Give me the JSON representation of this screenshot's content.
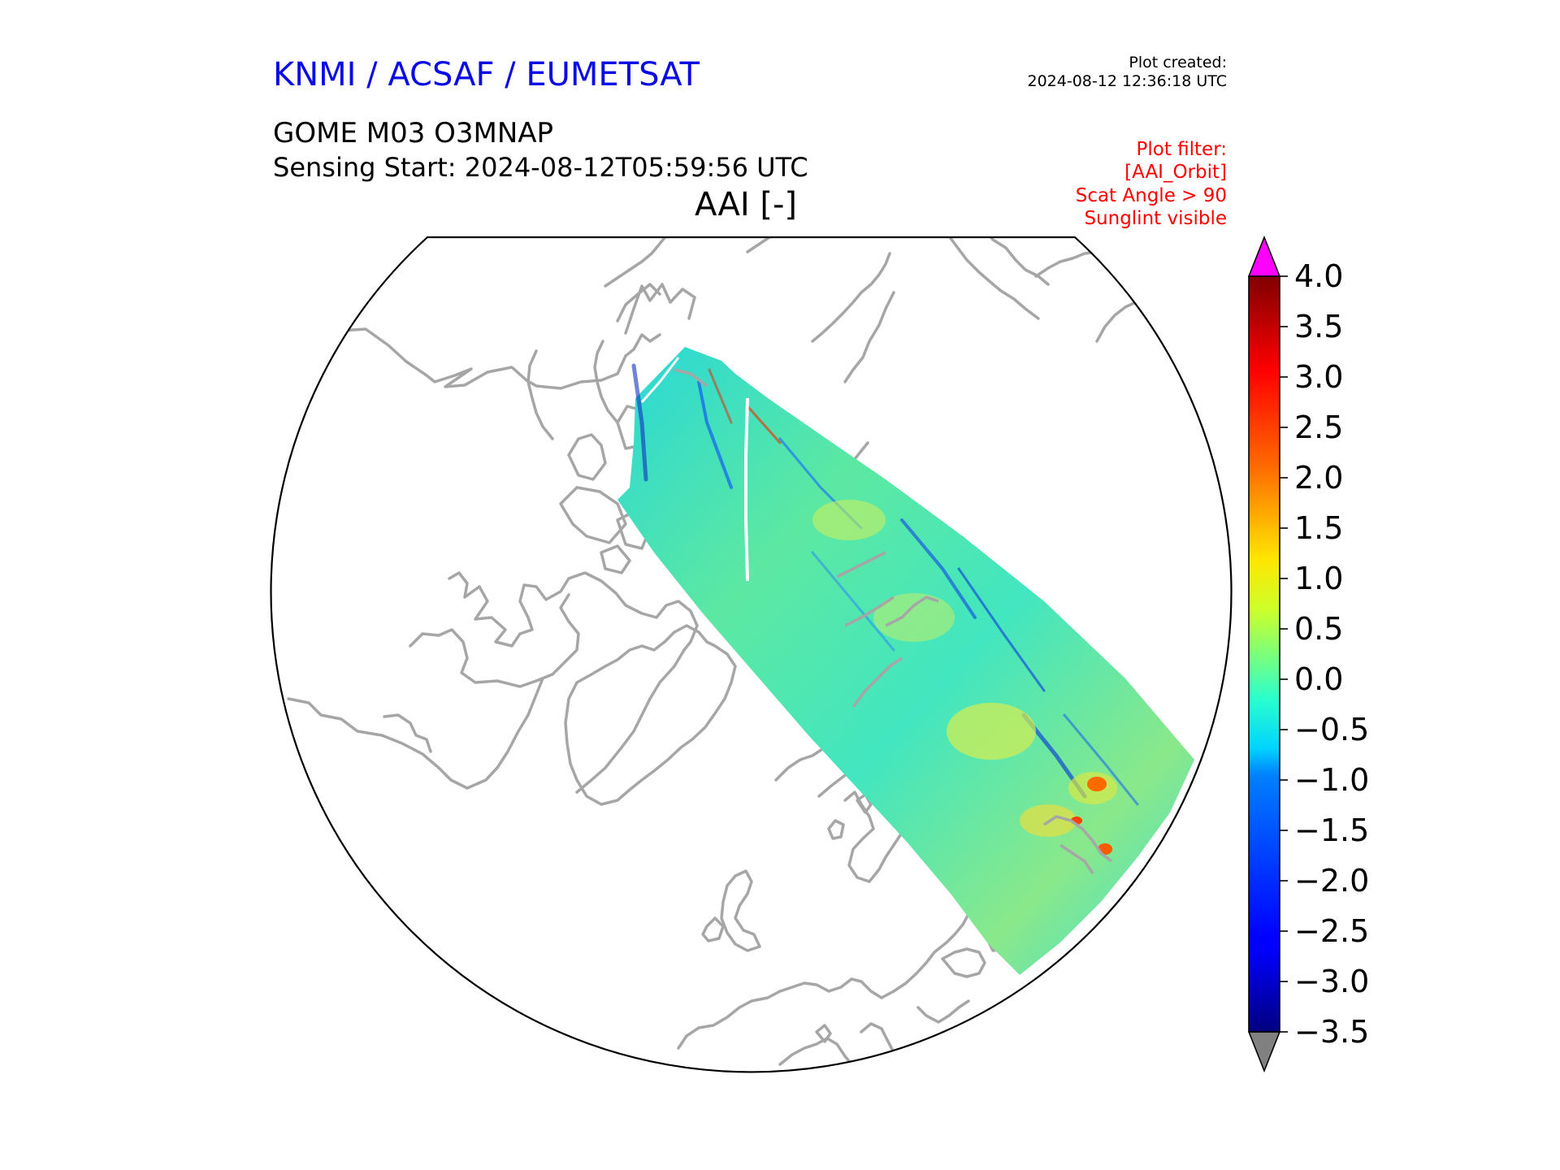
{
  "header": {
    "organization": "KNMI / ACSAF / EUMETSAT",
    "organization_color": "#0a0ae6",
    "product": "GOME M03 O3MNAP",
    "sensing_start": "Sensing Start: 2024-08-12T05:59:56 UTC",
    "variable_title": "AAI [-]",
    "plot_created_label": "Plot created:",
    "plot_created_time": "2024-08-12 12:36:18 UTC"
  },
  "plot_filter": {
    "color": "#ff0000",
    "lines": [
      "Plot filter:",
      "[AAI_Orbit]",
      "Scat Angle > 90",
      "Sunglint visible"
    ]
  },
  "map": {
    "projection": "north polar stereographic",
    "coastline_color": "#a6a6a6",
    "swath_dominant_value": -0.5,
    "swath_hotspot_max": 3.5
  },
  "colorbar": {
    "colormap": "jet",
    "vmin": -3.5,
    "vmax": 4.0,
    "ticks": [
      "4.0",
      "3.5",
      "3.0",
      "2.5",
      "2.0",
      "1.5",
      "1.0",
      "0.5",
      "0.0",
      "−0.5",
      "−1.0",
      "−1.5",
      "−2.0",
      "−2.5",
      "−3.0",
      "−3.5"
    ],
    "over_color": "#ff00ff",
    "under_color": "#808080"
  }
}
